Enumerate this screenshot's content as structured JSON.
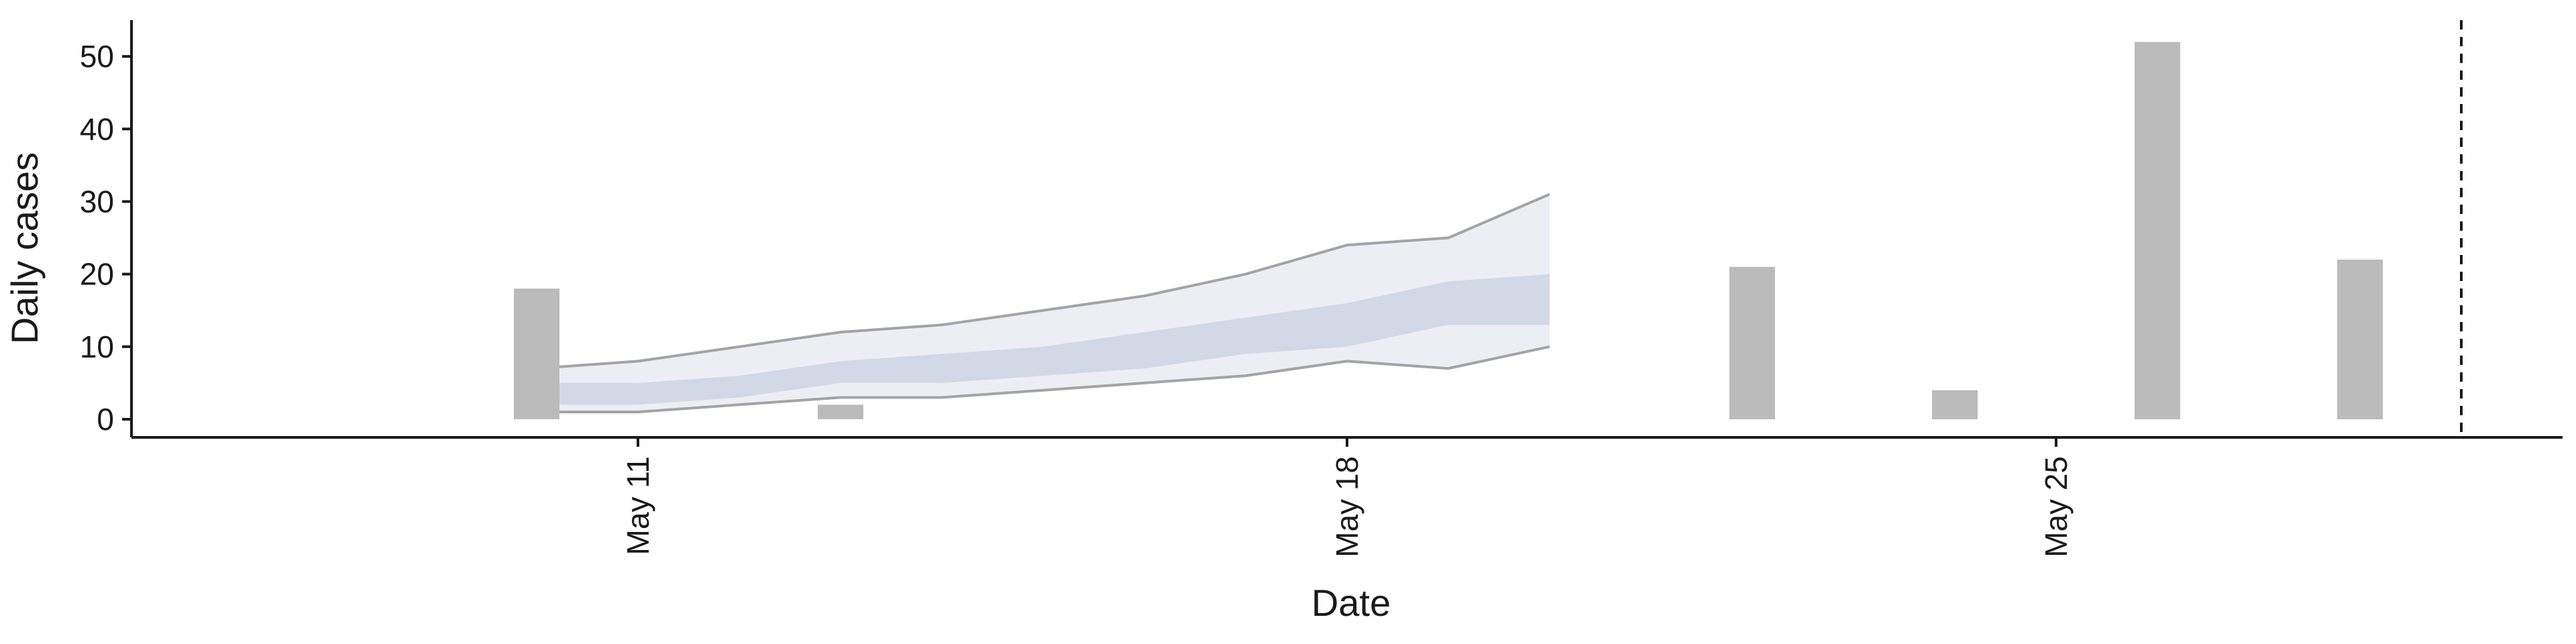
{
  "chart_data": {
    "type": "bar",
    "xlabel": "Date",
    "ylabel": "Daily cases",
    "ylim": [
      -2.5,
      55
    ],
    "yticks": [
      0,
      10,
      20,
      30,
      40,
      50
    ],
    "x_range": [
      "2021-05-06",
      "2021-05-30"
    ],
    "xticks": [
      {
        "date": "2021-05-11",
        "label": "May 11"
      },
      {
        "date": "2021-05-18",
        "label": "May 18"
      },
      {
        "date": "2021-05-25",
        "label": "May 25"
      }
    ],
    "grid": false,
    "legend": "none",
    "observed_cases": [
      {
        "date": "2021-05-10",
        "value": 18
      },
      {
        "date": "2021-05-13",
        "value": 2
      },
      {
        "date": "2021-05-22",
        "value": 21
      },
      {
        "date": "2021-05-24",
        "value": 4
      },
      {
        "date": "2021-05-26",
        "value": 52
      },
      {
        "date": "2021-05-28",
        "value": 22
      }
    ],
    "forecast": {
      "dates": [
        "2021-05-10",
        "2021-05-11",
        "2021-05-12",
        "2021-05-13",
        "2021-05-14",
        "2021-05-15",
        "2021-05-16",
        "2021-05-17",
        "2021-05-18",
        "2021-05-19",
        "2021-05-20"
      ],
      "lower_90": [
        1,
        1,
        2,
        3,
        3,
        4,
        5,
        6,
        8,
        7,
        10
      ],
      "lower_50": [
        2,
        2,
        3,
        5,
        5,
        6,
        7,
        9,
        10,
        13,
        13
      ],
      "upper_50": [
        5,
        5,
        6,
        8,
        9,
        10,
        12,
        14,
        16,
        19,
        20
      ],
      "upper_90": [
        7,
        8,
        10,
        12,
        13,
        15,
        17,
        20,
        24,
        25,
        31
      ]
    },
    "reference_line": {
      "date": "2021-05-29"
    },
    "colors": {
      "bars": "#bbbbbb",
      "band_outer": "#eceef4",
      "band_inner": "#d3d8e6",
      "band_edge": "#9a9a9a",
      "reference_line": "#1a1a1a",
      "axis": "#1a1a1a"
    }
  }
}
